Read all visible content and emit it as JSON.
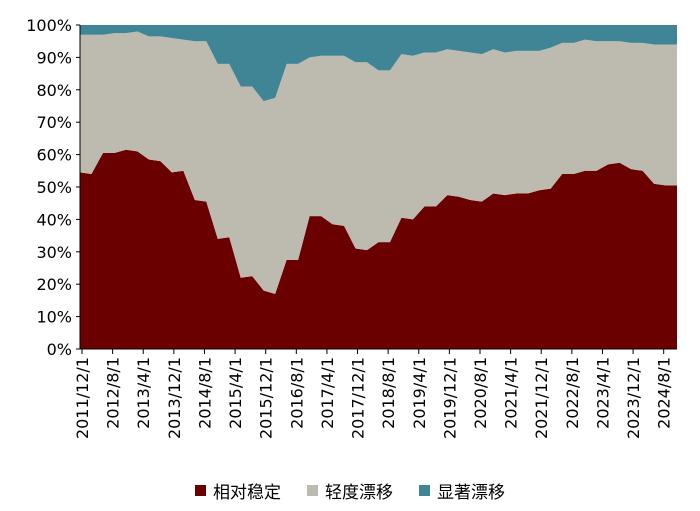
{
  "chart_data": {
    "type": "area",
    "stacked": true,
    "percent": true,
    "x_tick_labels": [
      "2011/12/1",
      "2012/8/1",
      "2013/4/1",
      "2013/12/1",
      "2014/8/1",
      "2015/4/1",
      "2015/12/1",
      "2016/8/1",
      "2017/4/1",
      "2017/12/1",
      "2018/8/1",
      "2019/4/1",
      "2019/12/1",
      "2020/8/1",
      "2021/4/1",
      "2021/12/1",
      "2022/8/1",
      "2023/4/1",
      "2023/12/1",
      "2024/8/1"
    ],
    "y_tick_labels": [
      "0%",
      "10%",
      "20%",
      "30%",
      "40%",
      "50%",
      "60%",
      "70%",
      "80%",
      "90%",
      "100%"
    ],
    "ylim": [
      0,
      100
    ],
    "grid": false,
    "legend_position": "bottom",
    "series": [
      {
        "name": "相对稳定",
        "color": "#6b0000",
        "values": [
          54.5,
          54,
          60.5,
          60.5,
          61.5,
          61,
          58.5,
          58,
          54.5,
          55,
          46,
          45.5,
          34,
          34.5,
          22,
          22.5,
          18,
          17,
          27.5,
          27.5,
          41,
          41,
          38.5,
          38,
          31,
          30.5,
          33,
          33,
          40.5,
          40,
          44,
          44,
          47.5,
          47,
          46,
          45.5,
          48,
          47.5,
          48,
          48,
          49,
          49.5,
          54,
          54,
          55,
          55,
          57,
          57.5,
          55.5,
          55,
          51,
          50.5,
          50.5
        ]
      },
      {
        "name": "轻度漂移",
        "color": "#bdbaaf",
        "values": [
          42.5,
          43,
          36.5,
          37,
          36,
          37,
          38,
          38.5,
          41.5,
          40.5,
          49,
          49.5,
          54,
          53.5,
          59,
          58.5,
          58.5,
          60.5,
          60.5,
          60.5,
          49,
          49.5,
          52,
          52.5,
          57.5,
          58,
          53,
          53,
          50.5,
          50.5,
          47.5,
          47.5,
          45,
          45,
          45.5,
          45.5,
          44.5,
          44,
          44,
          44,
          43,
          43.5,
          40.5,
          40.5,
          40.5,
          40,
          38,
          37.5,
          39,
          39.5,
          43,
          43.5,
          43.5
        ]
      },
      {
        "name": "显著漂移",
        "color": "#3f8596",
        "values": [
          3,
          3,
          3,
          2.5,
          2.5,
          2,
          3.5,
          3.5,
          4,
          4.5,
          5,
          5,
          12,
          12,
          19,
          19,
          23.5,
          22.5,
          12,
          12,
          10,
          9.5,
          9.5,
          9.5,
          11.5,
          11.5,
          14,
          14,
          9,
          9.5,
          8.5,
          8.5,
          7.5,
          8,
          8.5,
          9,
          7.5,
          8.5,
          8,
          8,
          8,
          7,
          5.5,
          5.5,
          4.5,
          5,
          5,
          5,
          5.5,
          5.5,
          6,
          6,
          6
        ]
      }
    ]
  }
}
